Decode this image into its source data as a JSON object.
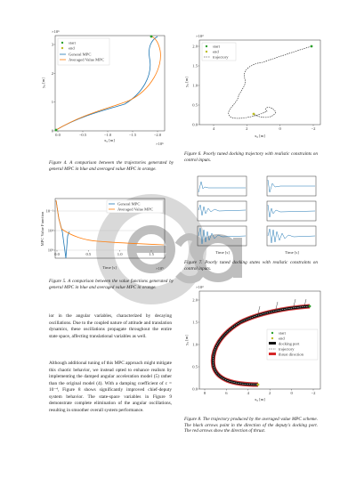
{
  "figure4": {
    "multiplier_y": "×10⁶",
    "multiplier_x": "×10⁶",
    "y_label": "y₀ [m]",
    "x_label": "x₀ [m]",
    "xticks": [
      "0.0",
      "−0.5",
      "−1.0",
      "−1.5",
      "−2.0"
    ],
    "yticks": [
      "0",
      "1",
      "2",
      "3"
    ],
    "legend": [
      "start",
      "end",
      "General MPC",
      "Averaged Value MPC"
    ],
    "caption": "Figure 4. A comparison between the trajectories generated by general MPC in blue and averaged value MPC in orange."
  },
  "figure5": {
    "y_label": "MPC Value Function",
    "x_label": "Time [s]",
    "multiplier_x": "×10⁵",
    "xticks": [
      "0.0",
      "0.5",
      "1.0",
      "1.5"
    ],
    "yticks": [
      "10⁹",
      "10⁴",
      "10⁻¹"
    ],
    "legend": [
      "General MPC",
      "Averaged Value MPC"
    ],
    "caption": "Figure 5. A comparison between the value functions generated by general MPC in blue and averaged value MPC in orange."
  },
  "body": [
    "ior in the angular variables, characterized by decaying oscillations. Due to the coupled nature of attitude and translation dynamics, these oscillations propagate throughout the entire state space, affecting translational variables as well.",
    "Although additional tuning of this MPC approach might mitigate this chaotic behavior, we instead opted to enhance realism by implementing the damped angular acceleration model (5) rather than the original model (4). With a damping coefficient of c = 10⁻⁴, Figure 8 shows significantly improved chief-deputy system behavior. The state-space variables in Figure 9 demonstrate complete elimination of the angular oscillations, resulting in smoother overall system performance."
  ],
  "figure6": {
    "multiplier_y": "×10³",
    "y_label": "y₀ [m]",
    "x_label": "x₀ [m]",
    "xticks": [
      "4",
      "2",
      "0",
      "−2"
    ],
    "yticks": [
      "0.0",
      "0.5",
      "1.0",
      "1.5",
      "2.0"
    ],
    "legend": [
      "start",
      "end",
      "trajectory"
    ],
    "caption": "Figure 6. Poorly tuned docking trajectory with realistic constraints on control inputs."
  },
  "figure7": {
    "x_label": "Time [s]",
    "caption": "Figure 7. Poorly tuned docking states with realistic constraints on control inputs."
  },
  "figure8": {
    "multiplier_y": "×10³",
    "y_label": "y₀ [m]",
    "x_label": "x₀ [m]",
    "xticks": [
      "8",
      "6",
      "4",
      "2",
      "0",
      "−2"
    ],
    "yticks": [
      "0.0",
      "0.5",
      "1.0",
      "1.5",
      "2.0"
    ],
    "legend": [
      "start",
      "end",
      "docking port",
      "trajectory",
      "thrust direction"
    ],
    "caption": "Figure 8. The trajectory produced by the averaged value MPC scheme. The black arrows point in the direction of the deputy's docking port. The red arrows show the direction of thrust."
  }
}
